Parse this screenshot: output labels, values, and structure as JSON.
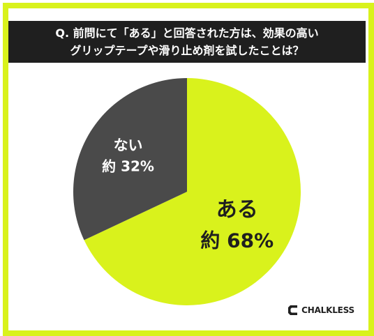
{
  "question": {
    "line1": "Q. 前問にて「ある」と回答された方は、効果の高い",
    "line2": "グリップテープや滑り止め剤を試したことは？"
  },
  "colors": {
    "frame": "#d9f21c",
    "bar_bg": "#1f1f1f",
    "slice_yes": "#d9f21c",
    "slice_no": "#4a4a4a"
  },
  "chart_data": {
    "type": "pie",
    "title": "",
    "slices": [
      {
        "label": "ある",
        "value": 68,
        "display": "約 68%",
        "color": "#d9f21c"
      },
      {
        "label": "ない",
        "value": 32,
        "display": "約 32%",
        "color": "#4a4a4a"
      }
    ]
  },
  "brand": {
    "logo_icon": "c-bracket-logo-icon",
    "text": "CHALKLESS"
  }
}
